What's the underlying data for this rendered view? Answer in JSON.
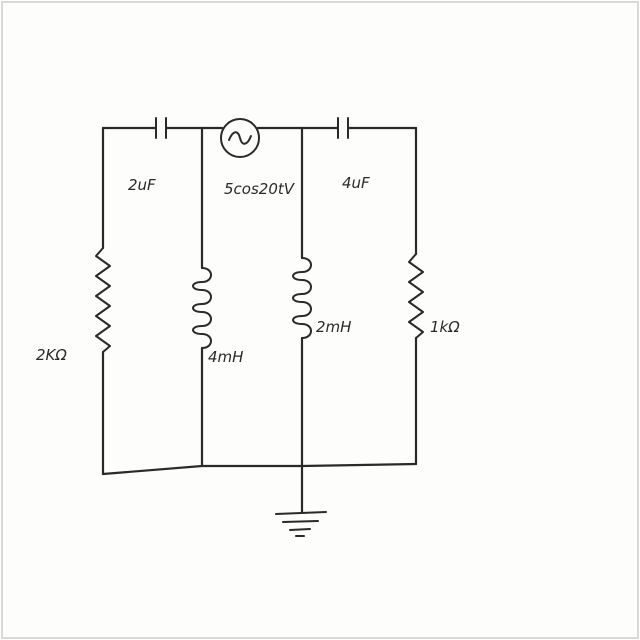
{
  "components": {
    "c1": {
      "value": "2uF"
    },
    "c2": {
      "value": "4uF"
    },
    "source": {
      "value": "5cos20tV"
    },
    "r1": {
      "value": "2KΩ"
    },
    "l1": {
      "value": "4mH"
    },
    "l2": {
      "value": "2mH"
    },
    "r2": {
      "value": "1kΩ"
    }
  },
  "colors": {
    "ink": "#2a2a2a",
    "paper": "#fdfdfb"
  },
  "icons": [
    "capacitor-icon",
    "ac-source-icon",
    "resistor-icon",
    "inductor-icon",
    "ground-icon"
  ]
}
